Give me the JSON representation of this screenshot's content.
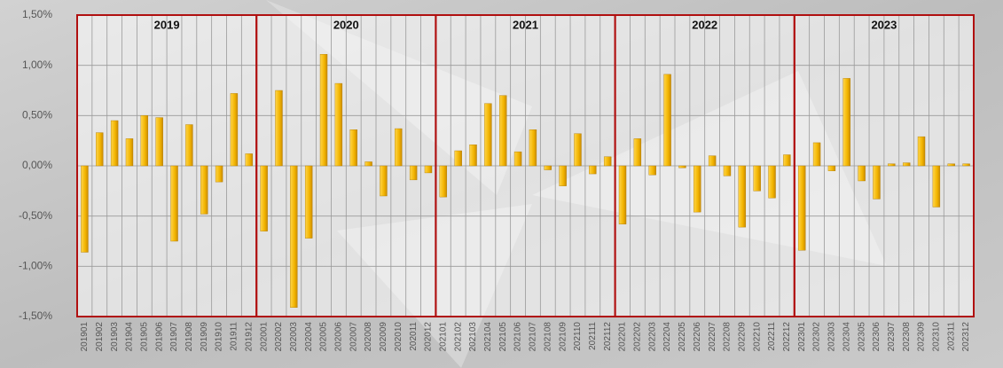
{
  "chart_data": {
    "type": "bar",
    "categories": [
      "201901",
      "201902",
      "201903",
      "201904",
      "201905",
      "201906",
      "201907",
      "201908",
      "201909",
      "201910",
      "201911",
      "201912",
      "202001",
      "202002",
      "202003",
      "202004",
      "202005",
      "202006",
      "202007",
      "202008",
      "202009",
      "202010",
      "202011",
      "202012",
      "202101",
      "202102",
      "202103",
      "202104",
      "202105",
      "202106",
      "202107",
      "202108",
      "202109",
      "202110",
      "202111",
      "202112",
      "202201",
      "202202",
      "202203",
      "202204",
      "202205",
      "202206",
      "202207",
      "202208",
      "202209",
      "202210",
      "202211",
      "202212",
      "202301",
      "202302",
      "202303",
      "202304",
      "202305",
      "202306",
      "202307",
      "202308",
      "202309",
      "202310",
      "202311",
      "202312"
    ],
    "values": [
      -0.86,
      0.33,
      0.45,
      0.27,
      0.5,
      0.48,
      -0.75,
      0.41,
      -0.48,
      -0.16,
      0.72,
      0.12,
      -0.65,
      0.75,
      -1.41,
      -0.72,
      1.11,
      0.82,
      0.36,
      0.04,
      -0.3,
      0.37,
      -0.14,
      -0.07,
      -0.31,
      0.15,
      0.21,
      0.62,
      0.7,
      0.14,
      0.36,
      -0.04,
      -0.2,
      0.32,
      -0.08,
      0.09,
      -0.58,
      0.27,
      -0.09,
      0.91,
      -0.02,
      -0.46,
      0.1,
      -0.1,
      -0.61,
      -0.25,
      -0.32,
      0.11,
      -0.84,
      0.23,
      -0.05,
      0.87,
      -0.15,
      -0.33,
      0.02,
      0.03,
      0.29,
      -0.41,
      0.02,
      0.02
    ],
    "color": "#f2b400",
    "annotations": [
      "2019",
      "2020",
      "2021",
      "2022",
      "2023"
    ],
    "annotation_color": "#b01010",
    "ylim": [
      -1.5,
      1.5
    ],
    "yticks": [
      {
        "value": -1.5,
        "label": "-1,50%"
      },
      {
        "value": -1.0,
        "label": "-1,00%"
      },
      {
        "value": -0.5,
        "label": "-0,50%"
      },
      {
        "value": 0,
        "label": "0,00%"
      },
      {
        "value": 0.5,
        "label": "0,50%"
      },
      {
        "value": 1.0,
        "label": "1,00%"
      },
      {
        "value": 1.5,
        "label": "1,50%"
      }
    ],
    "grid": true
  }
}
